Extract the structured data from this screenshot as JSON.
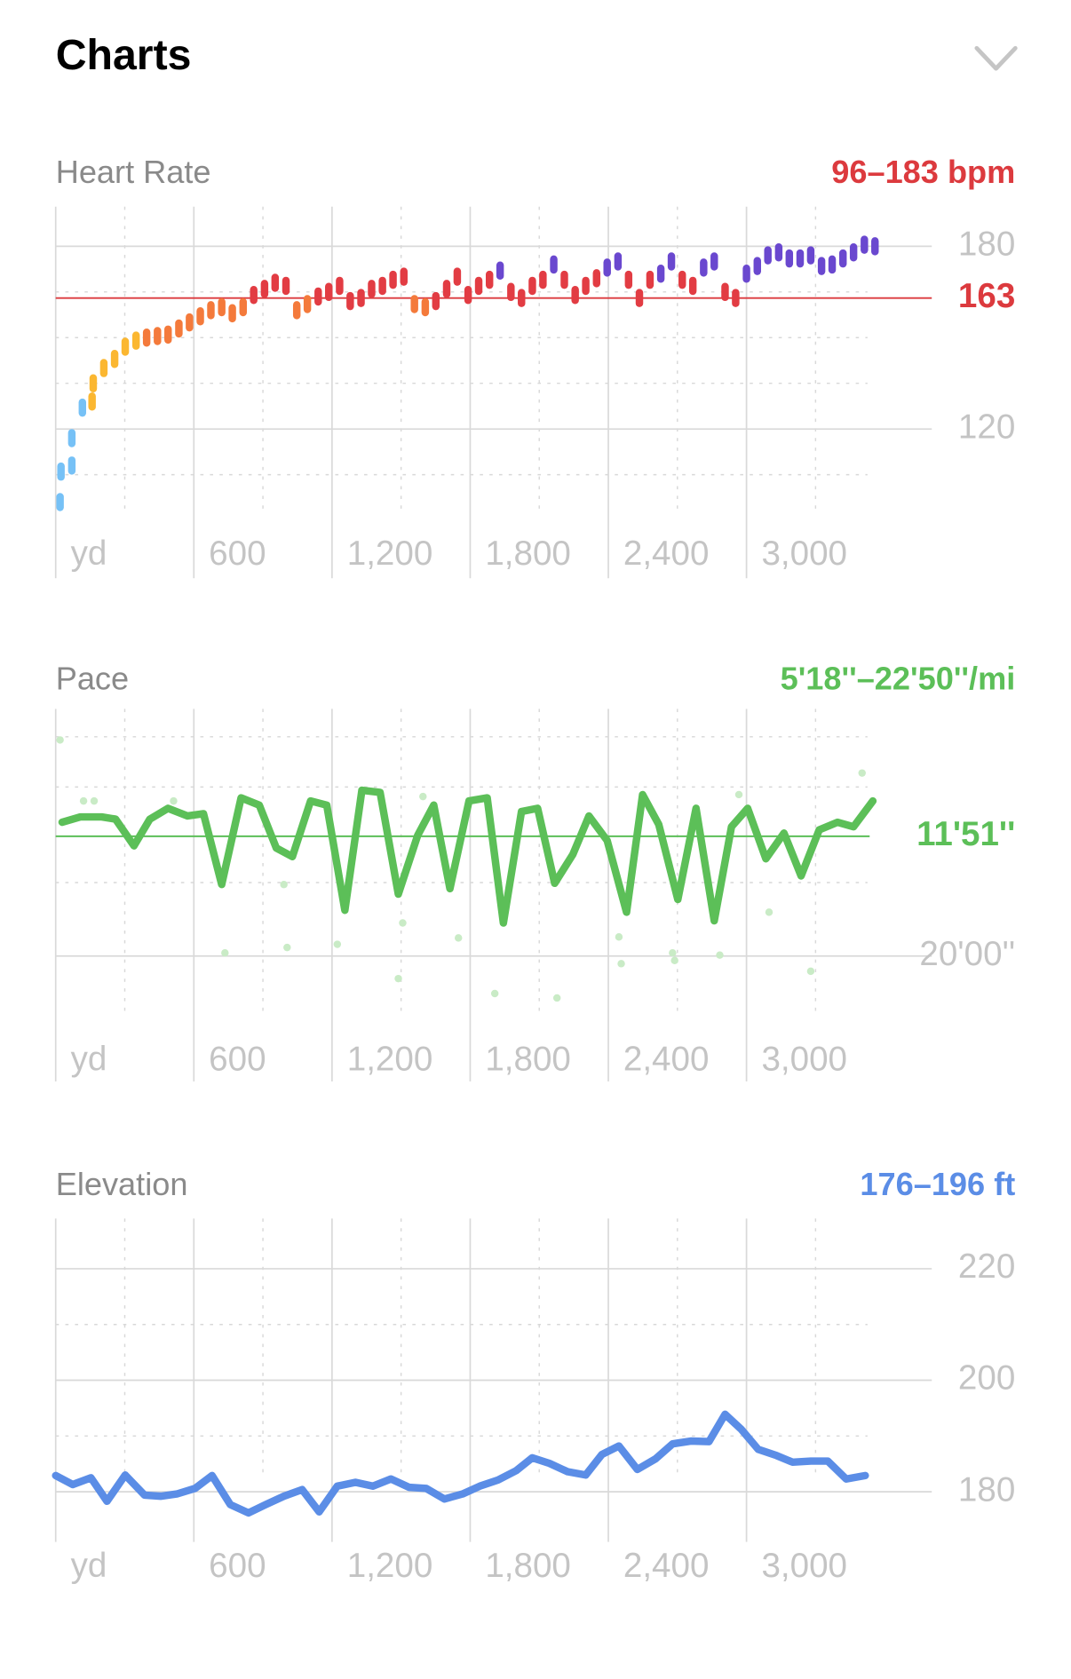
{
  "title": "Charts",
  "chart_data": [
    {
      "type": "scatter",
      "title": "Heart Rate",
      "subtitle": "96–183 bpm",
      "title_color": "#8a8a8a",
      "subtitle_color": "#dc3a3e",
      "x": [
        19,
        23,
        70,
        70,
        116,
        158,
        163,
        209,
        256,
        302,
        349,
        395,
        442,
        488,
        535,
        581,
        628,
        674,
        721,
        767,
        814,
        860,
        907,
        953,
        1000,
        1047,
        1093,
        1140,
        1186,
        1233,
        1279,
        1326,
        1372,
        1419,
        1465,
        1512,
        1558,
        1605,
        1651,
        1698,
        1744,
        1791,
        1837,
        1884,
        1930,
        1977,
        2023,
        2070,
        2116,
        2163,
        2209,
        2256,
        2302,
        2349,
        2395,
        2442,
        2488,
        2535,
        2581,
        2628,
        2674,
        2721,
        2767,
        2814,
        2860,
        2907,
        2953,
        3000,
        3047,
        3093,
        3140,
        3186,
        3233,
        3279,
        3326,
        3372,
        3419,
        3465,
        3512,
        3558
      ],
      "values": [
        96,
        106,
        108,
        117,
        127,
        129,
        135,
        140,
        143,
        147,
        149,
        150,
        150.5,
        151,
        153,
        155,
        157,
        159,
        160,
        158,
        160,
        164,
        166,
        168,
        167,
        159,
        161,
        163.5,
        165,
        167,
        162,
        163,
        166,
        167,
        169,
        170,
        161,
        160,
        162,
        166,
        170,
        164,
        167,
        169,
        172,
        165,
        163,
        167,
        169,
        174,
        169,
        164,
        167,
        169.5,
        173,
        175,
        169,
        163,
        169,
        171,
        175,
        169,
        167,
        173,
        175,
        165,
        163,
        171,
        173.5,
        177,
        178,
        176,
        176,
        177,
        173.5,
        174,
        176,
        178,
        180.5,
        180
      ],
      "zones": [
        {
          "upto": 128,
          "color": "#76c1f6"
        },
        {
          "upto": 149,
          "color": "#fbb731"
        },
        {
          "upto": 161,
          "color": "#f47a3b"
        },
        {
          "upto": 170.5,
          "color": "#e23c43"
        },
        {
          "color": "#6a48cf"
        }
      ],
      "xlim": [
        0,
        3600
      ],
      "xticks": [
        {
          "value": 0,
          "label": "yd"
        },
        600,
        {
          "value": 1200,
          "label": "1,200"
        },
        {
          "value": 1800,
          "label": "1,800"
        },
        {
          "value": 2400,
          "label": "2,400"
        },
        {
          "value": 3000,
          "label": "3,000"
        }
      ],
      "minor_xticks": [
        300,
        900,
        1500,
        2100,
        2700,
        3300
      ],
      "ylim": [
        71,
        193
      ],
      "yticks": [
        120,
        180
      ],
      "minor_yticks": [
        105,
        135,
        150,
        165
      ],
      "average": 163,
      "average_color": "#dc3a3e"
    },
    {
      "type": "line",
      "title": "Pace",
      "subtitle": "5'18''–22'50''/mi",
      "title_color": "#8a8a8a",
      "subtitle_color": "#5cbf58",
      "x": [
        28,
        107,
        200,
        260,
        340,
        409,
        488,
        572,
        642,
        721,
        805,
        884,
        958,
        1028,
        1107,
        1177,
        1256,
        1330,
        1409,
        1488,
        1572,
        1642,
        1712,
        1795,
        1874,
        1944,
        2023,
        2093,
        2167,
        2246,
        2316,
        2395,
        2479,
        2549,
        2619,
        2702,
        2781,
        2860,
        2935,
        3005,
        3084,
        3163,
        3237,
        3316,
        3395,
        3465,
        3549
      ],
      "values": [
        654,
        632,
        632,
        641,
        750,
        641,
        597,
        628,
        619,
        908,
        554,
        584,
        759,
        794,
        567,
        584,
        1013,
        523,
        532,
        947,
        707,
        584,
        925,
        567,
        554,
        1065,
        610,
        597,
        903,
        785,
        628,
        728,
        1021,
        541,
        663,
        969,
        597,
        1056,
        672,
        597,
        803,
        698,
        873,
        685,
        654,
        672,
        567
      ],
      "color": "#5cbf58",
      "samples": {
        "x": [
          19,
          121,
          167,
          512,
          735,
          991,
          1005,
          1223,
          1488,
          1507,
          1749,
          1907,
          2177,
          2446,
          2456,
          2679,
          2688,
          2884,
          3098,
          3279,
          3502,
          1595,
          2967
        ],
        "values": [
          318,
          567,
          567,
          567,
          1187,
          908,
          1165,
          1152,
          1292,
          1065,
          1126,
          1353,
          1371,
          1122,
          1231,
          1187,
          1218,
          1196,
          1021,
          1262,
          453,
          549,
          541
        ],
        "color": "#c9ebc6"
      },
      "xlim": [
        0,
        3600
      ],
      "xticks": [
        {
          "value": 0,
          "label": "yd"
        },
        600,
        {
          "value": 1200,
          "label": "1,200"
        },
        {
          "value": 1800,
          "label": "1,800"
        },
        {
          "value": 2400,
          "label": "2,400"
        },
        {
          "value": 3000,
          "label": "3,000"
        }
      ],
      "minor_xticks": [
        300,
        900,
        1500,
        2100,
        2700,
        3300
      ],
      "ylim": [
        1712,
        191
      ],
      "yticks": [
        {
          "value": 1200,
          "label": "20'00''"
        }
      ],
      "minor_yticks": [
        305,
        510,
        900
      ],
      "average": {
        "value": 711,
        "label": "11'51''"
      },
      "average_color": "#5cbf58"
    },
    {
      "type": "line",
      "title": "Elevation",
      "subtitle": "176–196 ft",
      "title_color": "#8a8a8a",
      "subtitle_color": "#5b8de6",
      "x": [
        0,
        74,
        153,
        223,
        302,
        386,
        456,
        526,
        605,
        679,
        758,
        837,
        912,
        991,
        1070,
        1144,
        1223,
        1302,
        1377,
        1456,
        1535,
        1609,
        1688,
        1767,
        1842,
        1921,
        2000,
        2070,
        2144,
        2223,
        2302,
        2372,
        2446,
        2526,
        2605,
        2679,
        2758,
        2837,
        2907,
        2977,
        3051,
        3130,
        3200,
        3279,
        3353,
        3433,
        3516
      ],
      "values": [
        182.9,
        181.3,
        182.5,
        178.3,
        183.0,
        179.4,
        179.2,
        179.6,
        180.6,
        182.9,
        177.7,
        176.2,
        177.7,
        179.2,
        180.4,
        176.4,
        181.0,
        181.7,
        181.0,
        182.3,
        180.8,
        180.6,
        178.7,
        179.6,
        181.0,
        182.1,
        183.8,
        186.1,
        185.1,
        183.6,
        183.0,
        186.7,
        188.2,
        184.0,
        185.9,
        188.6,
        189.1,
        189.0,
        193.9,
        191.2,
        187.6,
        186.5,
        185.3,
        185.5,
        185.5,
        182.3,
        182.9
      ],
      "color": "#5b8de6",
      "xlim": [
        0,
        3600
      ],
      "xticks": [
        {
          "value": 0,
          "label": "yd"
        },
        600,
        {
          "value": 1200,
          "label": "1,200"
        },
        {
          "value": 1800,
          "label": "1,800"
        },
        {
          "value": 2400,
          "label": "2,400"
        },
        {
          "value": 3000,
          "label": "3,000"
        }
      ],
      "minor_xticks": [
        300,
        900,
        1500,
        2100,
        2700,
        3300
      ],
      "ylim": [
        171,
        229
      ],
      "yticks": [
        180,
        200,
        220
      ],
      "minor_yticks": [
        190,
        210
      ]
    }
  ]
}
